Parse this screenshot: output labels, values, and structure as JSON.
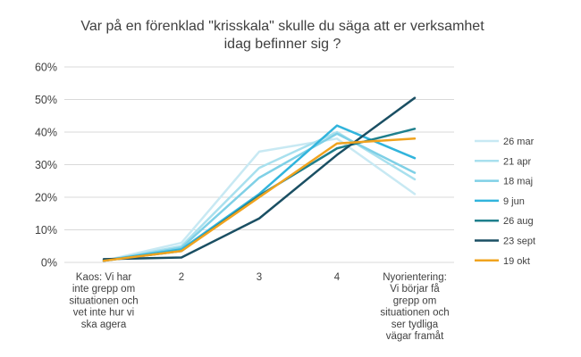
{
  "chart_data": {
    "type": "line",
    "title": [
      "Var på en förenklad \"krisskala\" skulle du säga att er verksamhet",
      "idag befinner sig ?"
    ],
    "categories": [
      [
        "Kaos: Vi har",
        "inte grepp om",
        "situationen och",
        "vet inte hur vi",
        "ska agera"
      ],
      [
        "2"
      ],
      [
        "3"
      ],
      [
        "4"
      ],
      [
        "Nyorientering:",
        "Vi börjar få",
        "grepp om",
        "situationen och",
        "ser tydliga",
        "vägar framåt"
      ]
    ],
    "y_ticks": [
      "0%",
      "10%",
      "20%",
      "30%",
      "40%",
      "50%",
      "60%"
    ],
    "ylim": [
      0,
      60
    ],
    "grid": true,
    "legend_position": "right",
    "series": [
      {
        "name": "26 mar",
        "color": "#c8e9f3",
        "values": [
          0.5,
          6,
          34,
          38,
          21
        ]
      },
      {
        "name": "21 apr",
        "color": "#a8e0ee",
        "values": [
          0.5,
          5,
          29,
          40,
          25.5
        ]
      },
      {
        "name": "18 maj",
        "color": "#7fd0e6",
        "values": [
          0.5,
          4.5,
          26,
          39.5,
          27.5
        ]
      },
      {
        "name": "9 jun",
        "color": "#31b4dc",
        "values": [
          0.5,
          4,
          21,
          42,
          32
        ]
      },
      {
        "name": "26 aug",
        "color": "#1e7f8c",
        "values": [
          0.5,
          3.5,
          20.5,
          35,
          41
        ]
      },
      {
        "name": "23 sept",
        "color": "#1a4f63",
        "values": [
          1,
          1.5,
          13.5,
          33,
          50.5
        ]
      },
      {
        "name": "19 okt",
        "color": "#f0a31e",
        "values": [
          0.5,
          3.5,
          20,
          36.5,
          38
        ]
      }
    ]
  }
}
